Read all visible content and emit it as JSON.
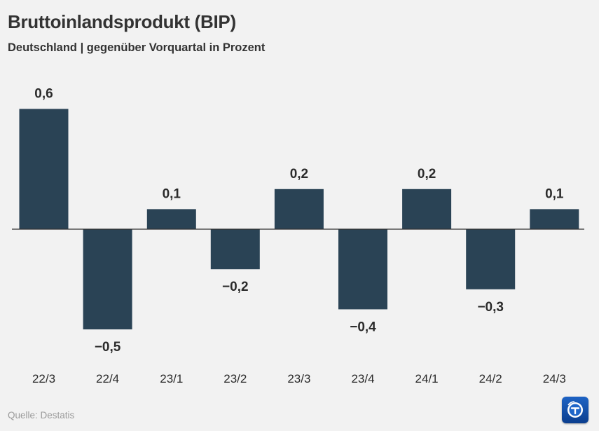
{
  "title": "Bruttoinlandsprodukt (BIP)",
  "subtitle": "Deutschland | gegenüber Vorquartal in Prozent",
  "source": "Quelle: Destatis",
  "logo_icon": "tagesschau-logo-icon",
  "colors": {
    "bar": "#2a4355",
    "axis": "#333333",
    "background": "#f2f2f2"
  },
  "chart_data": {
    "type": "bar",
    "categories": [
      "22/3",
      "22/4",
      "23/1",
      "23/2",
      "23/3",
      "23/4",
      "24/1",
      "24/2",
      "24/3"
    ],
    "values": [
      0.6,
      -0.5,
      0.1,
      -0.2,
      0.2,
      -0.4,
      0.2,
      -0.3,
      0.1
    ],
    "value_labels": [
      "0,6",
      "−0,5",
      "0,1",
      "−0,2",
      "0,2",
      "−0,4",
      "0,2",
      "−0,3",
      "0,1"
    ],
    "title": "Bruttoinlandsprodukt (BIP)",
    "xlabel": "",
    "ylabel": "",
    "ylim": [
      -0.5,
      0.6
    ],
    "grid": false
  }
}
